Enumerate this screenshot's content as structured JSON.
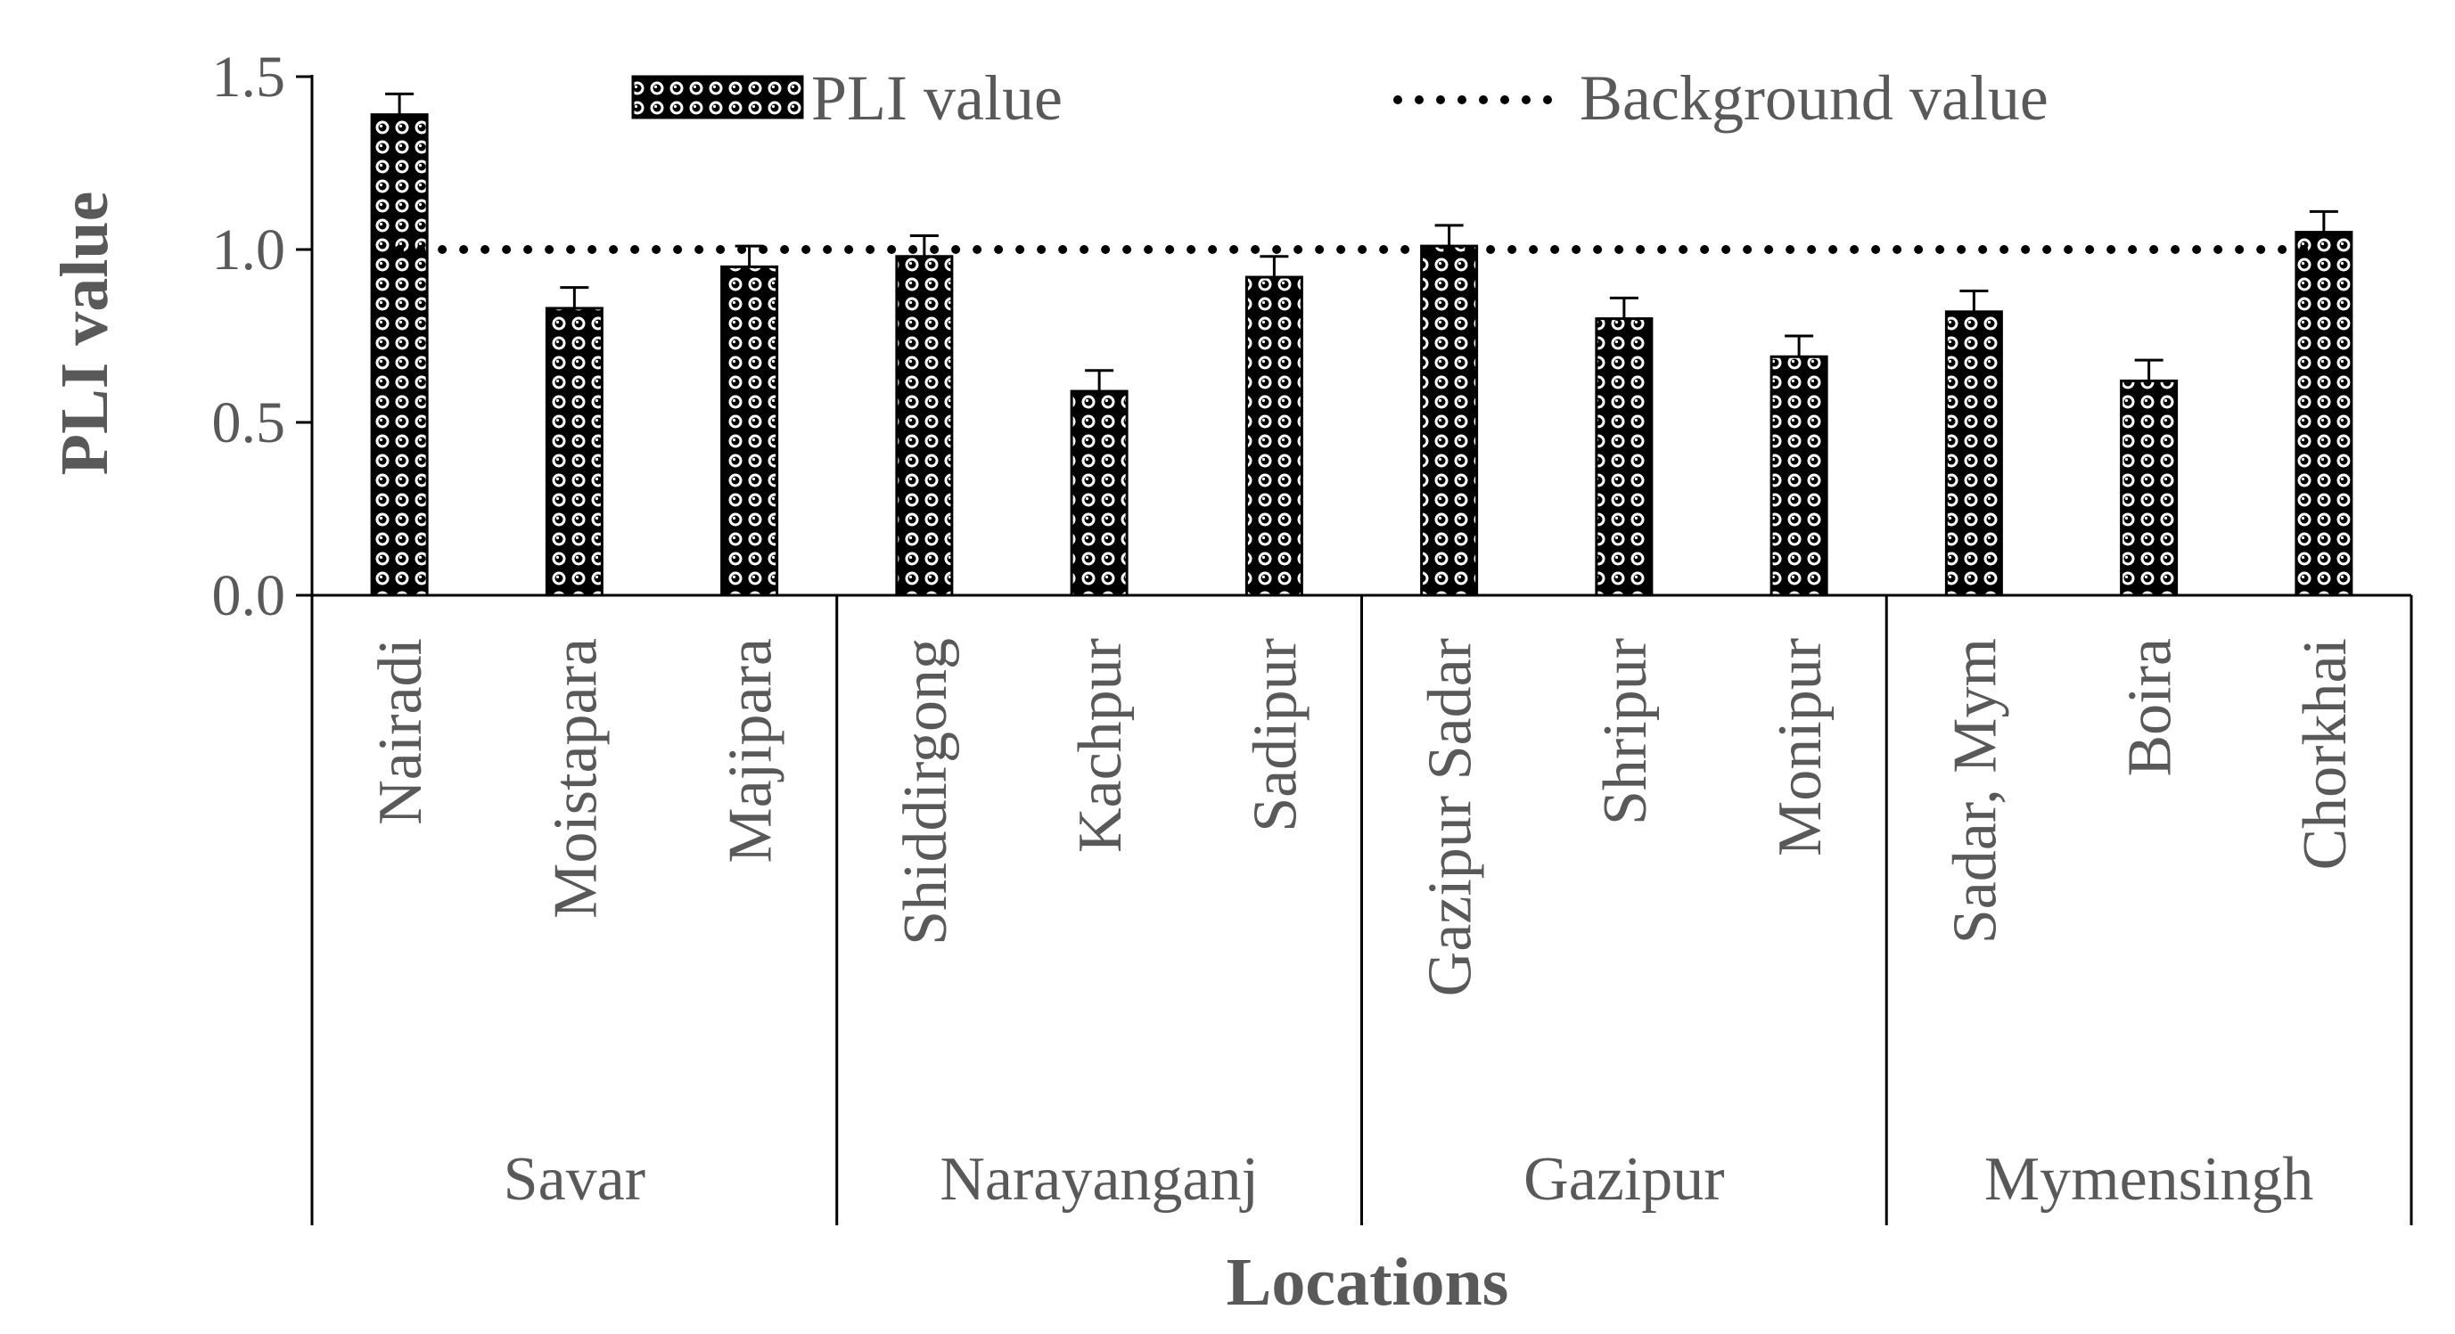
{
  "chart_data": {
    "type": "bar",
    "categories": [
      "Nairadi",
      "Moistapara",
      "Majipara",
      "Shiddirgong",
      "Kachpur",
      "Sadipur",
      "Gazipur Sadar",
      "Shripur",
      "Monipur",
      "Sadar, Mym",
      "Boira",
      "Chorkhai"
    ],
    "groups": [
      {
        "name": "Savar",
        "categories": [
          "Nairadi",
          "Moistapara",
          "Majipara"
        ]
      },
      {
        "name": "Narayanganj",
        "categories": [
          "Shiddirgong",
          "Kachpur",
          "Sadipur"
        ]
      },
      {
        "name": "Gazipur",
        "categories": [
          "Gazipur Sadar",
          "Shripur",
          "Monipur"
        ]
      },
      {
        "name": "Mymensingh",
        "categories": [
          "Sadar, Mym",
          "Boira",
          "Chorkhai"
        ]
      }
    ],
    "series": [
      {
        "name": "PLI value",
        "values": [
          1.39,
          0.83,
          0.95,
          0.98,
          0.59,
          0.92,
          1.01,
          0.8,
          0.69,
          0.82,
          0.62,
          1.05
        ],
        "errors": [
          0.06,
          0.06,
          0.06,
          0.06,
          0.06,
          0.06,
          0.06,
          0.06,
          0.06,
          0.06,
          0.06,
          0.06
        ]
      }
    ],
    "reference_line": {
      "name": "Background value",
      "value": 1.0
    },
    "xlabel": "Locations",
    "ylabel": "PLI value",
    "ylim": [
      0,
      1.5
    ],
    "yticks": [
      "0.0",
      "0.5",
      "1.0",
      "1.5"
    ],
    "legend_position": "top",
    "grid": false,
    "colors": {
      "bar": "#000000",
      "text": "#595959",
      "axis": "#000000"
    }
  }
}
